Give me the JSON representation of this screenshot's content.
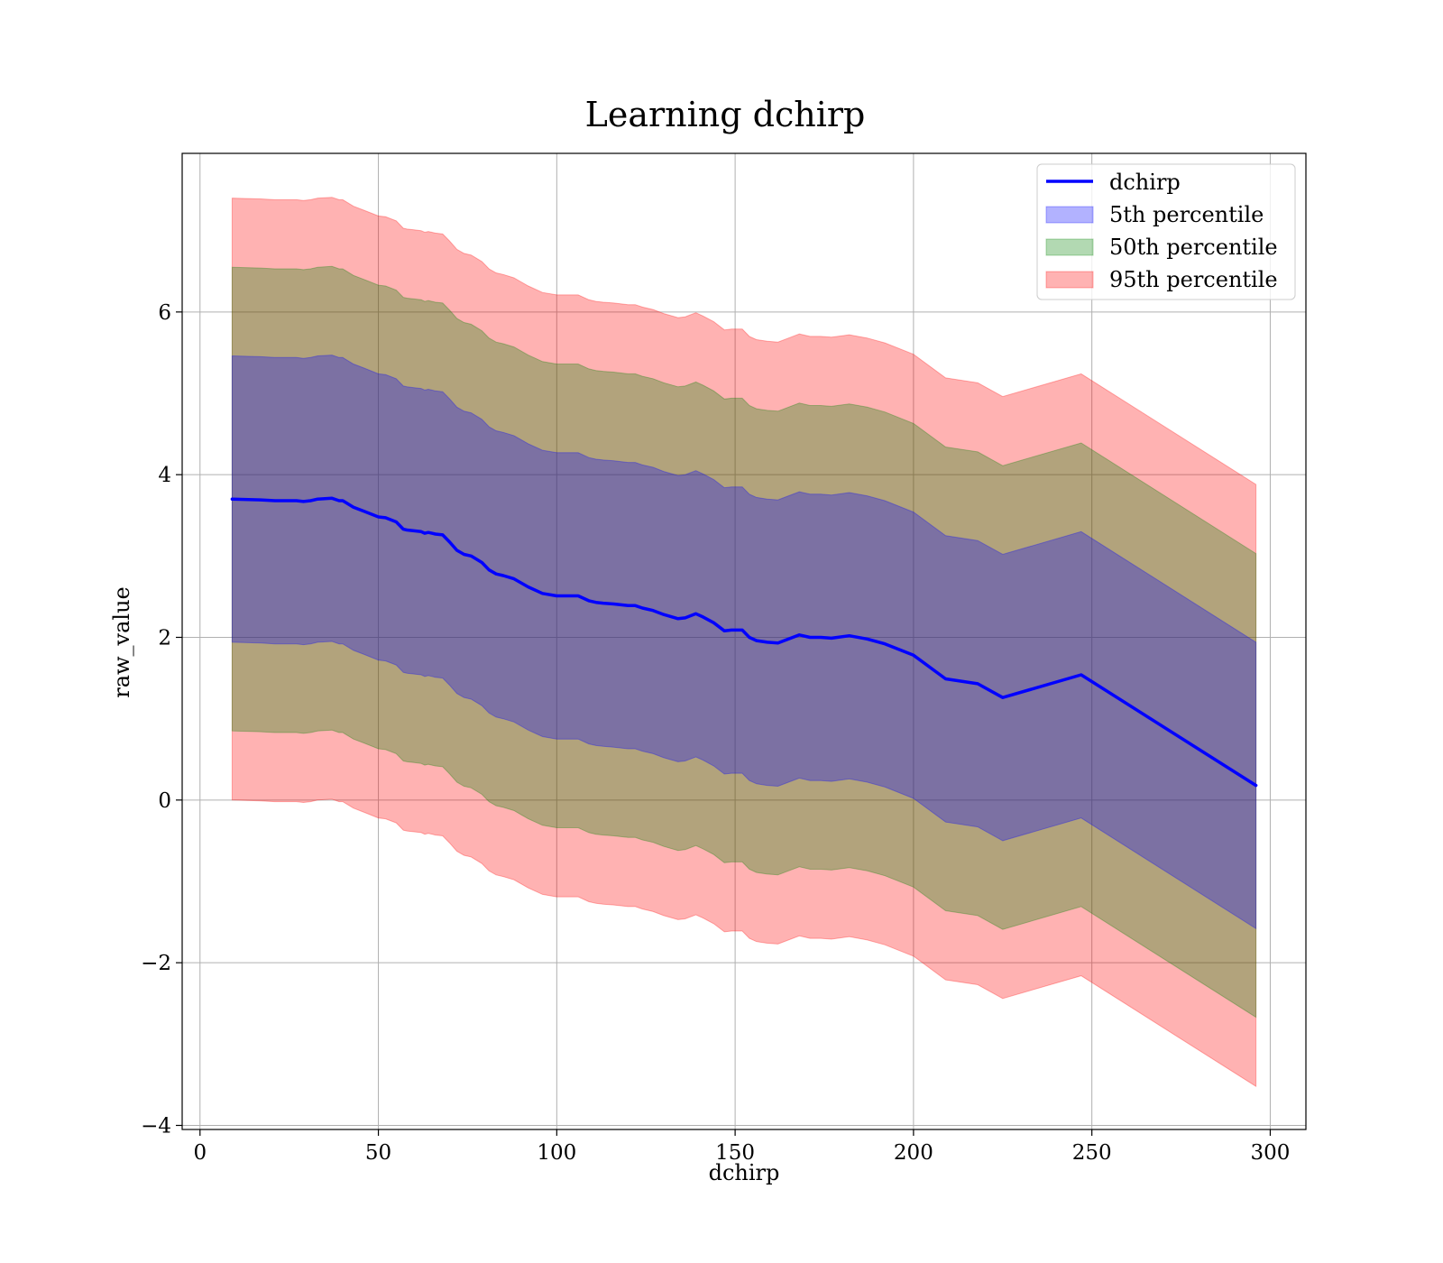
{
  "chart_data": {
    "type": "line",
    "title": "Learning dchirp",
    "xlabel": "dchirp",
    "ylabel": "raw_value",
    "xlim": [
      -5,
      310
    ],
    "ylim": [
      -4.05,
      7.95
    ],
    "xticks": [
      0,
      50,
      100,
      150,
      200,
      250,
      300
    ],
    "xtick_labels": [
      "0",
      "50",
      "100",
      "150",
      "200",
      "250",
      "300"
    ],
    "yticks": [
      -4,
      -2,
      0,
      2,
      4,
      6
    ],
    "ytick_labels": [
      "−4",
      "−2",
      "0",
      "2",
      "4",
      "6"
    ],
    "grid": true,
    "legend_position": "top-right",
    "x": [
      9,
      17,
      21,
      25,
      27,
      29,
      31,
      33,
      37,
      39,
      40,
      43,
      46,
      50,
      52,
      55,
      57,
      58,
      60,
      62,
      63,
      64,
      65,
      66,
      68,
      70,
      72,
      74,
      76,
      79,
      81,
      83,
      85,
      88,
      90,
      92,
      96,
      100,
      102,
      104,
      106,
      109,
      111,
      113,
      116,
      120,
      122,
      124,
      127,
      130,
      134,
      136,
      139,
      141,
      144,
      147,
      149,
      152,
      154,
      156,
      159,
      162,
      165,
      168,
      171,
      174,
      177,
      182,
      187,
      192,
      200,
      209,
      218,
      225,
      247,
      296
    ],
    "series": [
      {
        "name": "dchirp",
        "color": "#0000ff",
        "values": [
          3.7,
          3.69,
          3.68,
          3.68,
          3.68,
          3.67,
          3.68,
          3.7,
          3.71,
          3.68,
          3.68,
          3.6,
          3.55,
          3.48,
          3.47,
          3.42,
          3.33,
          3.32,
          3.31,
          3.3,
          3.28,
          3.29,
          3.28,
          3.27,
          3.26,
          3.17,
          3.07,
          3.02,
          3.0,
          2.92,
          2.83,
          2.78,
          2.76,
          2.72,
          2.67,
          2.62,
          2.54,
          2.51,
          2.51,
          2.51,
          2.51,
          2.45,
          2.43,
          2.42,
          2.41,
          2.39,
          2.39,
          2.36,
          2.33,
          2.28,
          2.23,
          2.24,
          2.29,
          2.25,
          2.18,
          2.08,
          2.09,
          2.09,
          2.0,
          1.96,
          1.94,
          1.93,
          1.98,
          2.03,
          2.0,
          2.0,
          1.99,
          2.02,
          1.98,
          1.92,
          1.78,
          1.49,
          1.43,
          1.26,
          1.54,
          0.18
        ]
      }
    ],
    "bands": [
      {
        "name": "95th percentile",
        "color": "#ff0000",
        "opacity": 0.3,
        "half_width": 3.7
      },
      {
        "name": "50th percentile",
        "color": "#008000",
        "opacity": 0.3,
        "half_width": 2.85
      },
      {
        "name": "5th percentile",
        "color": "#0000ff",
        "opacity": 0.3,
        "half_width": 1.76
      }
    ],
    "legend": [
      {
        "label": "dchirp",
        "kind": "line",
        "color": "#0000ff"
      },
      {
        "label": "5th percentile",
        "kind": "patch",
        "color": "#0000ff"
      },
      {
        "label": "50th percentile",
        "kind": "patch",
        "color": "#008000"
      },
      {
        "label": "95th percentile",
        "kind": "patch",
        "color": "#ff0000"
      }
    ]
  }
}
